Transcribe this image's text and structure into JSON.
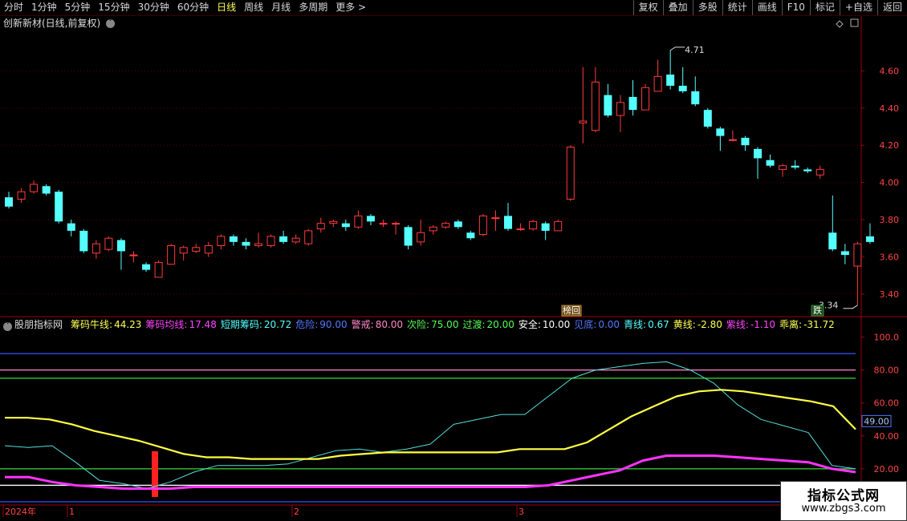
{
  "toolbar": {
    "left_items": [
      "分时",
      "1分钟",
      "5分钟",
      "15分钟",
      "30分钟",
      "60分钟",
      "日线",
      "周线",
      "月线",
      "多周期",
      "更多 >"
    ],
    "active": "日线",
    "right_items": [
      "复权",
      "叠加",
      "多股",
      "统计",
      "画线",
      "F10",
      "标记",
      "+自选",
      "返回"
    ]
  },
  "stock": {
    "title": "创新新材(日线,前复权)"
  },
  "price_axis": {
    "labels": [
      "4.60",
      "4.40",
      "4.20",
      "4.00",
      "3.80",
      "3.60",
      "3.40"
    ],
    "values": [
      4.6,
      4.4,
      4.2,
      4.0,
      3.8,
      3.6,
      3.4
    ]
  },
  "annotations": {
    "high": "4.71",
    "low": "3.34",
    "tag_bang": "榜回",
    "tag_die": "跌"
  },
  "indicator": {
    "name": "股朋指标网",
    "items": [
      {
        "label": "筹码牛线:",
        "value": "44.23",
        "color": "#ffff55"
      },
      {
        "label": "筹码均线:",
        "value": "17.48",
        "color": "#ff44ff"
      },
      {
        "label": "短期筹码:",
        "value": "20.72",
        "color": "#55ffff"
      },
      {
        "label": "危险:",
        "value": "90.00",
        "color": "#5577ff"
      },
      {
        "label": "警戒:",
        "value": "80.00",
        "color": "#ff88cc"
      },
      {
        "label": "次险:",
        "value": "75.00",
        "color": "#55ff55"
      },
      {
        "label": "过渡:",
        "value": "20.00",
        "color": "#55ff55"
      },
      {
        "label": "安全:",
        "value": "10.00",
        "color": "#ffffff"
      },
      {
        "label": "见底:",
        "value": "0.00",
        "color": "#5577ff"
      },
      {
        "label": "青线:",
        "value": "0.67",
        "color": "#55ffff"
      },
      {
        "label": "黄线:",
        "value": "-2.80",
        "color": "#ffff55"
      },
      {
        "label": "紫线:",
        "value": "-1.10",
        "color": "#ff44ff"
      },
      {
        "label": "乖离:",
        "value": "-31.72",
        "color": "#ffff55"
      }
    ],
    "axis_labels": [
      "100.0",
      "80.00",
      "60.00",
      "40.00",
      "20.00"
    ],
    "axis_values": [
      100,
      80,
      60,
      40,
      20
    ],
    "current_tag": "49.00"
  },
  "date_axis": {
    "labels": [
      "2024年",
      "1",
      "2",
      "3"
    ]
  },
  "watermark": {
    "line1": "指标公式网",
    "line2": "www.zbgs3.com"
  },
  "colors": {
    "up": "#ff3b3b",
    "down": "#55ffff",
    "axis": "#a00000",
    "price_text": "#ff4444"
  },
  "chart_data": {
    "type": "candlestick",
    "candles": [
      [
        3.92,
        3.87,
        3.95,
        3.86
      ],
      [
        3.91,
        3.95,
        3.97,
        3.89
      ],
      [
        3.95,
        3.99,
        4.01,
        3.94
      ],
      [
        3.98,
        3.94,
        3.99,
        3.93
      ],
      [
        3.95,
        3.79,
        3.96,
        3.78
      ],
      [
        3.78,
        3.74,
        3.8,
        3.71
      ],
      [
        3.74,
        3.63,
        3.75,
        3.62
      ],
      [
        3.62,
        3.67,
        3.69,
        3.59
      ],
      [
        3.64,
        3.7,
        3.71,
        3.63
      ],
      [
        3.69,
        3.63,
        3.7,
        3.53
      ],
      [
        3.61,
        3.61,
        3.63,
        3.57
      ],
      [
        3.56,
        3.53,
        3.57,
        3.52
      ],
      [
        3.49,
        3.57,
        3.58,
        3.49
      ],
      [
        3.56,
        3.66,
        3.67,
        3.56
      ],
      [
        3.62,
        3.65,
        3.66,
        3.58
      ],
      [
        3.63,
        3.65,
        3.67,
        3.62
      ],
      [
        3.62,
        3.66,
        3.68,
        3.6
      ],
      [
        3.66,
        3.71,
        3.72,
        3.64
      ],
      [
        3.71,
        3.68,
        3.72,
        3.66
      ],
      [
        3.68,
        3.66,
        3.7,
        3.64
      ],
      [
        3.66,
        3.67,
        3.73,
        3.65
      ],
      [
        3.66,
        3.71,
        3.72,
        3.65
      ],
      [
        3.71,
        3.68,
        3.74,
        3.67
      ],
      [
        3.68,
        3.7,
        3.72,
        3.67
      ],
      [
        3.67,
        3.74,
        3.75,
        3.66
      ],
      [
        3.75,
        3.78,
        3.81,
        3.73
      ],
      [
        3.78,
        3.79,
        3.8,
        3.76
      ],
      [
        3.78,
        3.76,
        3.8,
        3.74
      ],
      [
        3.76,
        3.82,
        3.85,
        3.75
      ],
      [
        3.82,
        3.79,
        3.83,
        3.77
      ],
      [
        3.78,
        3.78,
        3.8,
        3.76
      ],
      [
        3.78,
        3.78,
        3.79,
        3.72
      ],
      [
        3.76,
        3.66,
        3.77,
        3.64
      ],
      [
        3.68,
        3.73,
        3.8,
        3.66
      ],
      [
        3.74,
        3.76,
        3.77,
        3.72
      ],
      [
        3.76,
        3.78,
        3.79,
        3.75
      ],
      [
        3.79,
        3.76,
        3.8,
        3.75
      ],
      [
        3.73,
        3.7,
        3.74,
        3.69
      ],
      [
        3.72,
        3.82,
        3.83,
        3.71
      ],
      [
        3.81,
        3.81,
        3.85,
        3.74
      ],
      [
        3.82,
        3.75,
        3.89,
        3.74
      ],
      [
        3.75,
        3.75,
        3.78,
        3.74
      ],
      [
        3.75,
        3.79,
        3.8,
        3.74
      ],
      [
        3.78,
        3.74,
        3.79,
        3.69
      ],
      [
        3.74,
        3.79,
        3.8,
        3.74
      ],
      [
        3.91,
        4.19,
        4.2,
        3.9
      ],
      [
        4.32,
        4.33,
        4.62,
        4.21
      ],
      [
        4.28,
        4.54,
        4.62,
        4.27
      ],
      [
        4.47,
        4.36,
        4.53,
        4.35
      ],
      [
        4.36,
        4.43,
        4.47,
        4.27
      ],
      [
        4.46,
        4.39,
        4.55,
        4.36
      ],
      [
        4.39,
        4.51,
        4.53,
        4.39
      ],
      [
        4.49,
        4.57,
        4.66,
        4.49
      ],
      [
        4.58,
        4.52,
        4.71,
        4.5
      ],
      [
        4.52,
        4.49,
        4.62,
        4.48
      ],
      [
        4.49,
        4.42,
        4.57,
        4.41
      ],
      [
        4.39,
        4.3,
        4.4,
        4.29
      ],
      [
        4.29,
        4.25,
        4.3,
        4.17
      ],
      [
        4.23,
        4.23,
        4.28,
        4.22
      ],
      [
        4.24,
        4.2,
        4.25,
        4.17
      ],
      [
        4.18,
        4.13,
        4.19,
        4.02
      ],
      [
        4.12,
        4.09,
        4.15,
        4.08
      ],
      [
        4.07,
        4.09,
        4.1,
        4.03
      ],
      [
        4.09,
        4.08,
        4.12,
        4.07
      ],
      [
        4.07,
        4.06,
        4.08,
        4.05
      ],
      [
        4.04,
        4.07,
        4.09,
        4.02
      ],
      [
        3.73,
        3.64,
        3.93,
        3.63
      ],
      [
        3.63,
        3.61,
        3.67,
        3.56
      ],
      [
        3.55,
        3.67,
        3.68,
        3.34
      ],
      [
        3.71,
        3.68,
        3.78,
        3.67
      ]
    ],
    "lines": {
      "yellow": [
        51,
        51,
        50,
        47,
        43,
        40,
        37,
        33,
        29,
        27,
        27,
        26,
        26,
        26,
        26,
        28,
        29,
        30,
        30,
        30,
        30,
        30,
        30,
        32,
        32,
        32,
        36,
        44,
        52,
        58,
        64,
        67,
        68,
        67,
        65,
        63,
        61,
        58,
        44
      ],
      "cyan": [
        34,
        33,
        34,
        24,
        13,
        11,
        8,
        12,
        18,
        22,
        22,
        22,
        23,
        27,
        31,
        32,
        30,
        32,
        35,
        47,
        50,
        53,
        53,
        64,
        75,
        80,
        82,
        84,
        85,
        80,
        72,
        59,
        50,
        46,
        42,
        22,
        20
      ],
      "magenta": [
        15,
        15,
        12,
        10,
        9,
        8,
        8,
        8,
        9,
        9,
        9,
        9,
        9,
        9,
        9,
        9,
        9,
        9,
        9,
        9,
        9,
        9,
        9,
        10,
        13,
        16,
        19,
        25,
        28,
        28,
        28,
        27,
        26,
        25,
        24,
        20,
        18
      ]
    },
    "hlines": [
      {
        "value": 90,
        "color": "#3355ff"
      },
      {
        "value": 80,
        "color": "#ff88cc"
      },
      {
        "value": 75,
        "color": "#33dd33"
      },
      {
        "value": 20,
        "color": "#33dd33"
      },
      {
        "value": 10,
        "color": "#ffffff"
      },
      {
        "value": 0,
        "color": "#3355ff"
      }
    ],
    "price_ylim": [
      3.3,
      4.8
    ],
    "indicator_ylim": [
      0,
      110
    ]
  }
}
